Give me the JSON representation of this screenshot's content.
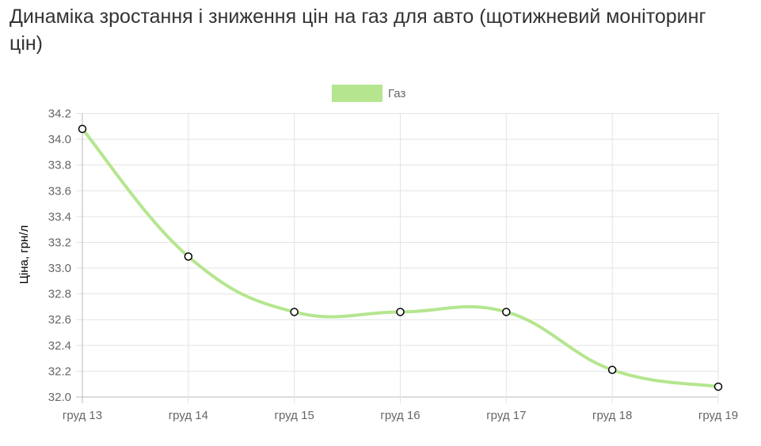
{
  "title": "Динаміка зростання і зниження цін на газ для авто (щотижневий моніторинг цін)",
  "chart_data": {
    "type": "line",
    "title": "Динаміка зростання і зниження цін на газ для авто (щотижневий моніторинг цін)",
    "ylabel": "Ціна, грн/л",
    "xlabel": "",
    "categories": [
      "груд 13",
      "груд 14",
      "груд 15",
      "груд 16",
      "груд 17",
      "груд 18",
      "груд 19"
    ],
    "series": [
      {
        "name": "Газ",
        "values": [
          34.08,
          33.09,
          32.66,
          32.66,
          32.66,
          32.21,
          32.08
        ],
        "color": "#b5e68f"
      }
    ],
    "ylim": [
      32.0,
      34.2
    ],
    "yticks": [
      "32.0",
      "32.2",
      "32.4",
      "32.6",
      "32.8",
      "33.0",
      "33.2",
      "33.4",
      "33.6",
      "33.8",
      "34.0",
      "34.2"
    ],
    "grid": true,
    "legend": "top-center",
    "smooth": true
  }
}
